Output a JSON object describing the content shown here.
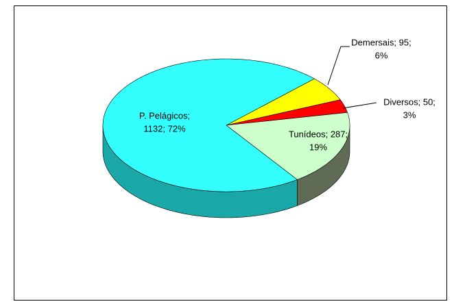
{
  "chart_data": {
    "type": "pie3d",
    "values": [
      95,
      50,
      287,
      1132
    ],
    "value_labels": [
      [
        "Demersais; 95;",
        "6%"
      ],
      [
        "Diversos; 50;",
        "3%"
      ],
      [
        "Tunídeos; 287;",
        "19%"
      ],
      [
        "P. Pelágicos;",
        "1132; 72%"
      ]
    ],
    "colors": [
      "#ffff00",
      "#ff0000",
      "#ccffcc",
      "#33ffff"
    ],
    "side_colors": [
      "#b3b300",
      "#b30000",
      "#5f6b55",
      "#1aa7a7"
    ]
  }
}
